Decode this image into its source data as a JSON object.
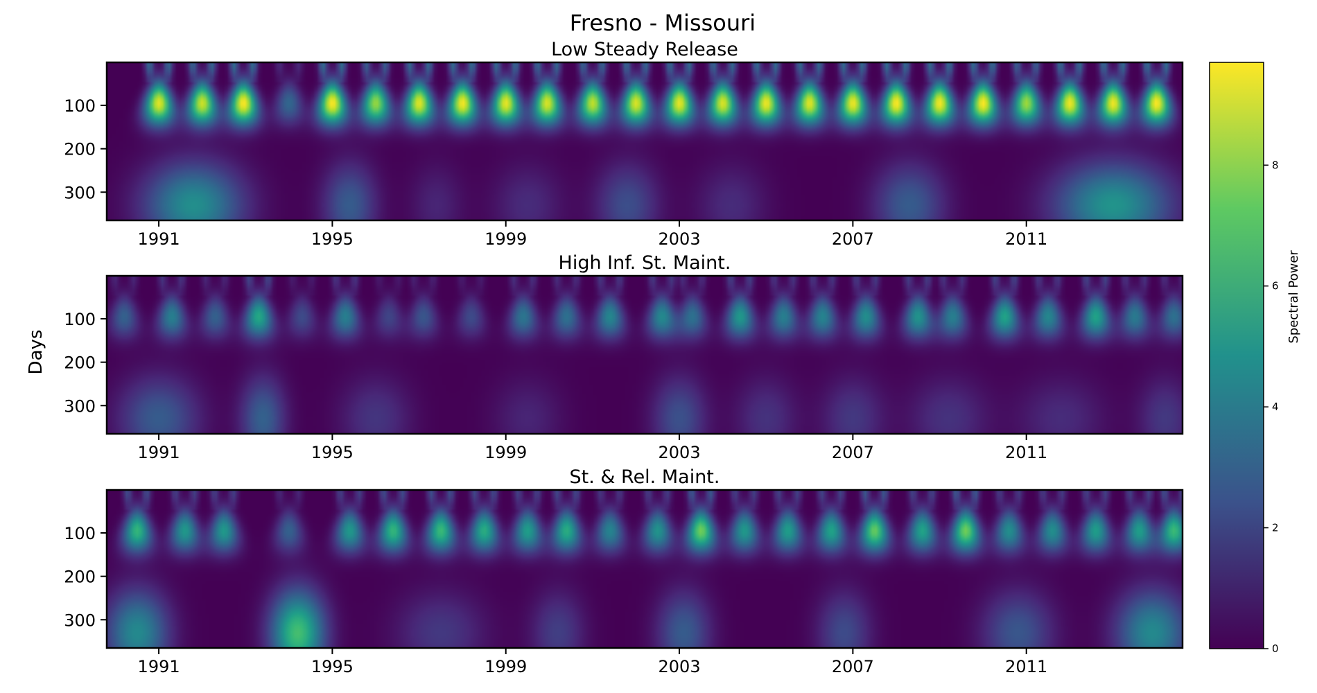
{
  "chart_data": {
    "type": "heatmap",
    "title": "Fresno - Missouri",
    "ylabel": "Days",
    "colorbar": {
      "label": "Spectral Power",
      "range": [
        0,
        9.7
      ],
      "ticks": [
        0,
        2,
        4,
        6,
        8
      ],
      "colormap": "viridis",
      "colors": [
        "#440154",
        "#3b528b",
        "#21918c",
        "#5ec962",
        "#fde725"
      ]
    },
    "x_range": [
      1989.8,
      2014.6
    ],
    "x_ticks": [
      "1991",
      "1995",
      "1999",
      "2003",
      "2007",
      "2011"
    ],
    "y_range": [
      1,
      365
    ],
    "y_ticks": [
      100,
      200,
      300
    ],
    "y_inverted": true,
    "panels": [
      {
        "title": "Low Steady Release",
        "peaks": [
          {
            "x": 1991.0,
            "amp": 9.3
          },
          {
            "x": 1992.0,
            "amp": 9.0
          },
          {
            "x": 1992.95,
            "amp": 9.7
          },
          {
            "x": 1994.0,
            "amp": 3.2
          },
          {
            "x": 1995.0,
            "amp": 9.7
          },
          {
            "x": 1996.0,
            "amp": 8.2
          },
          {
            "x": 1997.0,
            "amp": 9.3
          },
          {
            "x": 1998.0,
            "amp": 9.6
          },
          {
            "x": 1999.0,
            "amp": 9.4
          },
          {
            "x": 1999.95,
            "amp": 9.2
          },
          {
            "x": 2001.0,
            "amp": 8.8
          },
          {
            "x": 2002.0,
            "amp": 9.2
          },
          {
            "x": 2003.0,
            "amp": 9.4
          },
          {
            "x": 2004.0,
            "amp": 9.2
          },
          {
            "x": 2005.0,
            "amp": 9.5
          },
          {
            "x": 2006.0,
            "amp": 9.3
          },
          {
            "x": 2007.0,
            "amp": 9.5
          },
          {
            "x": 2008.0,
            "amp": 9.7
          },
          {
            "x": 2009.0,
            "amp": 9.6
          },
          {
            "x": 2010.0,
            "amp": 9.7
          },
          {
            "x": 2011.0,
            "amp": 8.3
          },
          {
            "x": 2012.0,
            "amp": 9.5
          },
          {
            "x": 2013.0,
            "amp": 9.5
          },
          {
            "x": 2014.0,
            "amp": 9.7
          }
        ],
        "low_blobs": [
          {
            "x": 1991.8,
            "amp": 4.8,
            "w": 1.1
          },
          {
            "x": 1995.4,
            "amp": 2.8,
            "w": 0.6
          },
          {
            "x": 1997.4,
            "amp": 1.0,
            "w": 0.6
          },
          {
            "x": 1999.5,
            "amp": 1.2,
            "w": 0.8
          },
          {
            "x": 2001.8,
            "amp": 2.3,
            "w": 0.7
          },
          {
            "x": 2004.2,
            "amp": 1.2,
            "w": 0.8
          },
          {
            "x": 2008.3,
            "amp": 2.8,
            "w": 0.8
          },
          {
            "x": 2013.0,
            "amp": 5.0,
            "w": 1.3
          }
        ]
      },
      {
        "title": "High Inf. St. Maint.",
        "peaks": [
          {
            "x": 1990.2,
            "amp": 3.0
          },
          {
            "x": 1991.3,
            "amp": 4.2
          },
          {
            "x": 1992.3,
            "amp": 3.0
          },
          {
            "x": 1993.3,
            "amp": 5.8
          },
          {
            "x": 1994.3,
            "amp": 2.2
          },
          {
            "x": 1995.3,
            "amp": 4.2
          },
          {
            "x": 1996.3,
            "amp": 2.0
          },
          {
            "x": 1997.1,
            "amp": 2.6
          },
          {
            "x": 1998.2,
            "amp": 2.2
          },
          {
            "x": 1999.4,
            "amp": 3.8
          },
          {
            "x": 2000.4,
            "amp": 3.6
          },
          {
            "x": 2001.4,
            "amp": 4.5
          },
          {
            "x": 2002.6,
            "amp": 4.6
          },
          {
            "x": 2003.3,
            "amp": 3.6
          },
          {
            "x": 2004.4,
            "amp": 5.2
          },
          {
            "x": 2005.4,
            "amp": 4.2
          },
          {
            "x": 2006.3,
            "amp": 4.4
          },
          {
            "x": 2007.3,
            "amp": 4.8
          },
          {
            "x": 2008.5,
            "amp": 5.0
          },
          {
            "x": 2009.3,
            "amp": 4.2
          },
          {
            "x": 2010.5,
            "amp": 5.6
          },
          {
            "x": 2011.5,
            "amp": 4.5
          },
          {
            "x": 2012.6,
            "amp": 5.6
          },
          {
            "x": 2013.5,
            "amp": 4.0
          },
          {
            "x": 2014.4,
            "amp": 3.6
          }
        ],
        "low_blobs": [
          {
            "x": 1991.0,
            "amp": 2.8,
            "w": 0.9
          },
          {
            "x": 1993.4,
            "amp": 3.0,
            "w": 0.5
          },
          {
            "x": 1996.0,
            "amp": 1.5,
            "w": 0.8
          },
          {
            "x": 1999.5,
            "amp": 1.0,
            "w": 0.8
          },
          {
            "x": 2003.0,
            "amp": 2.4,
            "w": 0.6
          },
          {
            "x": 2005.0,
            "amp": 1.4,
            "w": 0.7
          },
          {
            "x": 2007.0,
            "amp": 1.6,
            "w": 0.7
          },
          {
            "x": 2009.2,
            "amp": 1.4,
            "w": 0.9
          },
          {
            "x": 2011.8,
            "amp": 1.2,
            "w": 1.0
          },
          {
            "x": 2014.2,
            "amp": 1.6,
            "w": 0.6
          }
        ]
      },
      {
        "title": "St. & Rel. Maint.",
        "peaks": [
          {
            "x": 1990.5,
            "amp": 6.4
          },
          {
            "x": 1991.6,
            "amp": 5.2
          },
          {
            "x": 1992.5,
            "amp": 5.2
          },
          {
            "x": 1994.0,
            "amp": 3.0
          },
          {
            "x": 1995.4,
            "amp": 5.2
          },
          {
            "x": 1996.4,
            "amp": 6.4
          },
          {
            "x": 1997.5,
            "amp": 6.6
          },
          {
            "x": 1998.5,
            "amp": 6.0
          },
          {
            "x": 1999.5,
            "amp": 5.4
          },
          {
            "x": 2000.4,
            "amp": 6.0
          },
          {
            "x": 2001.4,
            "amp": 4.4
          },
          {
            "x": 2002.5,
            "amp": 5.0
          },
          {
            "x": 2003.5,
            "amp": 7.6
          },
          {
            "x": 2004.5,
            "amp": 5.2
          },
          {
            "x": 2005.5,
            "amp": 5.4
          },
          {
            "x": 2006.5,
            "amp": 5.6
          },
          {
            "x": 2007.5,
            "amp": 7.4
          },
          {
            "x": 2008.6,
            "amp": 5.6
          },
          {
            "x": 2009.6,
            "amp": 7.6
          },
          {
            "x": 2010.6,
            "amp": 4.8
          },
          {
            "x": 2011.6,
            "amp": 4.8
          },
          {
            "x": 2012.6,
            "amp": 5.4
          },
          {
            "x": 2013.6,
            "amp": 5.4
          },
          {
            "x": 2014.4,
            "amp": 6.6
          }
        ],
        "low_blobs": [
          {
            "x": 1990.5,
            "amp": 4.6,
            "w": 0.7
          },
          {
            "x": 1994.2,
            "amp": 6.8,
            "w": 0.6
          },
          {
            "x": 1997.5,
            "amp": 1.6,
            "w": 1.0
          },
          {
            "x": 2000.2,
            "amp": 1.8,
            "w": 0.6
          },
          {
            "x": 2003.1,
            "amp": 2.8,
            "w": 0.6
          },
          {
            "x": 2006.8,
            "amp": 2.2,
            "w": 0.6
          },
          {
            "x": 2010.8,
            "amp": 2.6,
            "w": 0.8
          },
          {
            "x": 2013.9,
            "amp": 4.6,
            "w": 0.8
          }
        ]
      }
    ]
  }
}
